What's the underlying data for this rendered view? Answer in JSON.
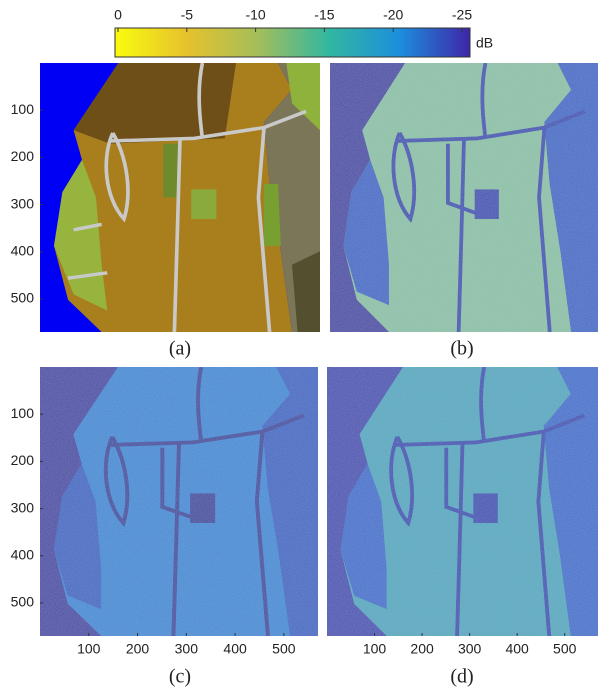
{
  "colorbar": {
    "ticks": [
      0,
      -5,
      -10,
      -15,
      -20,
      -25
    ],
    "unit": "dB"
  },
  "panels": [
    {
      "label": "(a)"
    },
    {
      "label": "(b)"
    },
    {
      "label": "(c)"
    },
    {
      "label": "(d)"
    }
  ],
  "yticks": [
    100,
    200,
    300,
    400,
    500
  ],
  "xticks": [
    100,
    200,
    300,
    400,
    500
  ]
}
